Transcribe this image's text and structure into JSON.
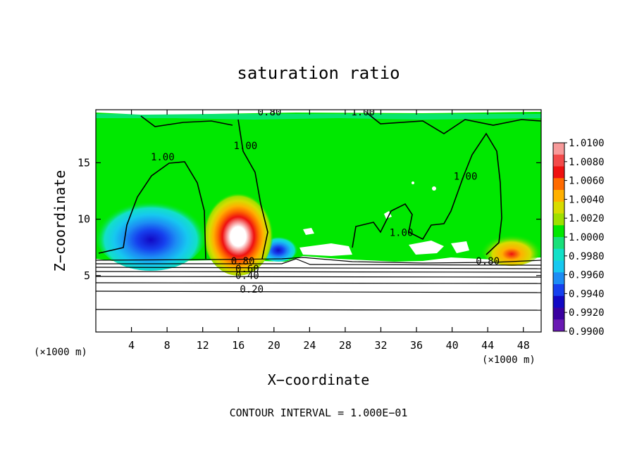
{
  "chart_data": {
    "type": "heatmap",
    "title": "saturation ratio",
    "xlabel": "X−coordinate",
    "ylabel": "Z−coordinate",
    "x_unit_left": "(×1000 m)",
    "x_unit_right": "(×1000 m)",
    "footer": "CONTOUR INTERVAL = 1.000E−01",
    "xlim": [
      0,
      50
    ],
    "ylim": [
      0,
      19.7
    ],
    "x_ticks": [
      4,
      8,
      12,
      16,
      20,
      24,
      28,
      32,
      36,
      40,
      44,
      48
    ],
    "y_ticks": [
      5,
      10,
      15
    ],
    "colorbar": {
      "min": 0.99,
      "max": 1.01,
      "levels": [
        "1.0100",
        "1.0080",
        "1.0060",
        "1.0040",
        "1.0020",
        "1.0000",
        "0.9980",
        "0.9960",
        "0.9940",
        "0.9920",
        "0.9900"
      ],
      "colors": [
        "#f79a9a",
        "#f24a4a",
        "#ef1010",
        "#ff6a00",
        "#ffb000",
        "#d8dc00",
        "#9ee000",
        "#00e800",
        "#18e07a",
        "#12e0c8",
        "#16c8f0",
        "#1c8cf4",
        "#1640ee",
        "#1208c4",
        "#3a00a0",
        "#6a1ab4"
      ]
    },
    "cloud_fields": [
      {
        "x": 16.0,
        "z": 8.5,
        "value": 1.01
      },
      {
        "x": 6.5,
        "z": 7.5,
        "value": 0.993
      },
      {
        "x": 47.0,
        "z": 7.5,
        "value": 1.006
      }
    ],
    "contour_labels": [
      {
        "text": "0.80",
        "x": 19.5,
        "z": 19.2
      },
      {
        "text": "1.00",
        "x": 30.0,
        "z": 19.2
      },
      {
        "text": "1.00",
        "x": 7.5,
        "z": 15.2
      },
      {
        "text": "1.00",
        "x": 16.8,
        "z": 16.2
      },
      {
        "text": "1.00",
        "x": 41.5,
        "z": 13.5
      },
      {
        "text": "1.00",
        "x": 34.3,
        "z": 8.5
      },
      {
        "text": "0.80",
        "x": 44.0,
        "z": 6.0
      },
      {
        "text": "0.80",
        "x": 16.5,
        "z": 6.0
      },
      {
        "text": "0.60",
        "x": 17.0,
        "z": 5.3
      },
      {
        "text": "0.40",
        "x": 17.0,
        "z": 4.7
      },
      {
        "text": "0.20",
        "x": 17.5,
        "z": 3.5
      }
    ]
  }
}
